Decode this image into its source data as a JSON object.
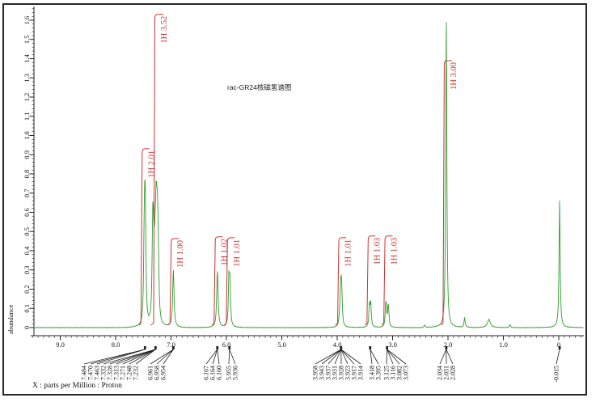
{
  "chart_data": {
    "type": "line",
    "subtype": "1H-NMR-spectrum",
    "title": "rac-GR24核磁氢谱图",
    "xlabel": "X : parts per Million : Proton",
    "ylabel": "abundance",
    "xlim_ppm": [
      9.53,
      -0.45
    ],
    "ylim_abundance": [
      0,
      1.66
    ],
    "grid": false,
    "colors": {
      "trace": "#2f9e2f",
      "integral": "#cc3333",
      "axis": "#222222",
      "label": "#111111"
    },
    "x_tick_labels": [
      "9.0",
      "8.0",
      "7.0",
      "6.0",
      "5.0",
      "4.0",
      "3.0",
      "2.0",
      "1.0",
      "0"
    ],
    "x_tick_ppm": [
      9.0,
      8.0,
      7.0,
      6.0,
      5.0,
      4.0,
      3.0,
      2.0,
      1.0,
      0.0
    ],
    "y_tick_labels": [
      "0",
      "0.1",
      "0.2",
      "0.3",
      "0.4",
      "0.5",
      "0.6",
      "0.7",
      "0.8",
      "0.9",
      "1.0",
      "1.1",
      "1.2",
      "1.3",
      "1.4",
      "1.5",
      "1.6"
    ],
    "peaks": [
      [
        7.488,
        0.1
      ],
      [
        7.484,
        0.22
      ],
      [
        7.477,
        0.15
      ],
      [
        7.47,
        0.31
      ],
      [
        7.463,
        0.25
      ],
      [
        7.457,
        0.11
      ],
      [
        7.34,
        0.07
      ],
      [
        7.332,
        0.18
      ],
      [
        7.328,
        0.22
      ],
      [
        7.321,
        0.13
      ],
      [
        7.313,
        0.17
      ],
      [
        7.301,
        0.11
      ],
      [
        7.292,
        0.14
      ],
      [
        7.283,
        0.17
      ],
      [
        7.271,
        0.31
      ],
      [
        7.263,
        0.2
      ],
      [
        7.255,
        0.14
      ],
      [
        7.248,
        0.23
      ],
      [
        7.24,
        0.16
      ],
      [
        7.232,
        0.2
      ],
      [
        7.224,
        0.09
      ],
      [
        6.958,
        0.3,
        1.0
      ],
      [
        6.163,
        0.3,
        1.0
      ],
      [
        5.955,
        0.24
      ],
      [
        5.936,
        0.22
      ],
      [
        3.958,
        0.04
      ],
      [
        3.943,
        0.05
      ],
      [
        3.937,
        0.06
      ],
      [
        3.931,
        0.06
      ],
      [
        3.928,
        0.06
      ],
      [
        3.923,
        0.06
      ],
      [
        3.917,
        0.06
      ],
      [
        3.914,
        0.04
      ],
      [
        3.418,
        0.11
      ],
      [
        3.395,
        0.12
      ],
      [
        3.125,
        0.07
      ],
      [
        3.116,
        0.08
      ],
      [
        3.082,
        0.07
      ],
      [
        3.073,
        0.06
      ],
      [
        2.031,
        1.63
      ],
      [
        2.42,
        0.012
      ],
      [
        1.7,
        0.05
      ],
      [
        1.26,
        0.042,
        2.2
      ],
      [
        0.88,
        0.015
      ],
      [
        -0.015,
        0.66
      ]
    ],
    "integrations": [
      {
        "label": "1H 2.01",
        "value": 2.01,
        "from_ppm": 7.58,
        "to_ppm": 7.39
      },
      {
        "label": "1H 3.52",
        "value": 3.52,
        "from_ppm": 7.37,
        "to_ppm": 7.14
      },
      {
        "label": "1H 1.00",
        "value": 1.0,
        "from_ppm": 7.06,
        "to_ppm": 6.86
      },
      {
        "label": "1H 1.02",
        "value": 1.02,
        "from_ppm": 6.26,
        "to_ppm": 6.07
      },
      {
        "label": "1H 1.01",
        "value": 1.01,
        "from_ppm": 6.04,
        "to_ppm": 5.85
      },
      {
        "label": "1H 1.01",
        "value": 1.01,
        "from_ppm": 4.03,
        "to_ppm": 3.84
      },
      {
        "label": "1H 1.03",
        "value": 1.03,
        "from_ppm": 3.5,
        "to_ppm": 3.31
      },
      {
        "label": "1H 1.03",
        "value": 1.03,
        "from_ppm": 3.2,
        "to_ppm": 3.0
      },
      {
        "label": "1H 3.00",
        "value": 3.0,
        "from_ppm": 2.13,
        "to_ppm": 1.93
      }
    ],
    "peak_label_groups": [
      {
        "pole_ppm": 7.47,
        "label_start_x": 104,
        "texts": [
          "7.484",
          "7.470",
          "7.463"
        ]
      },
      {
        "pole_ppm": 7.28,
        "label_start_x": 128,
        "texts": [
          "7.332",
          "7.328",
          "7.313",
          "7.271",
          "7.248",
          "7.232"
        ]
      },
      {
        "pole_ppm": 6.958,
        "label_start_x": 186,
        "texts": [
          "6.961",
          "6.958",
          "6.954"
        ]
      },
      {
        "pole_ppm": 6.164,
        "label_start_x": 255,
        "texts": [
          "6.167",
          "6.164",
          "6.160"
        ]
      },
      {
        "pole_ppm": 5.945,
        "label_start_x": 283,
        "texts": [
          "5.955",
          "5.936"
        ]
      },
      {
        "pole_ppm": 3.93,
        "label_start_x": 390,
        "texts": [
          "3.958",
          "3.943",
          "3.937",
          "3.931",
          "3.928",
          "3.923",
          "3.917",
          "3.914"
        ]
      },
      {
        "pole_ppm": 3.405,
        "label_start_x": 460,
        "texts": [
          "3.418",
          "3.395"
        ]
      },
      {
        "pole_ppm": 3.1,
        "label_start_x": 478,
        "texts": [
          "3.125",
          "3.116",
          "3.082",
          "3.073"
        ]
      },
      {
        "pole_ppm": 2.031,
        "label_start_x": 544,
        "texts": [
          "2.034",
          "2.031",
          "2.028"
        ]
      },
      {
        "pole_ppm": -0.015,
        "label_start_x": 688,
        "texts": [
          "-0.015"
        ]
      }
    ]
  }
}
